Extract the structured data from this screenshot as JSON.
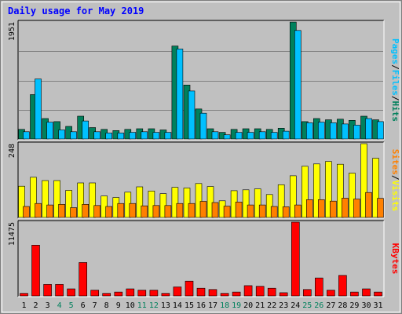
{
  "chart_data": {
    "type": "bar",
    "title": "Daily usage for May 2019",
    "categories": [
      "1",
      "2",
      "3",
      "4",
      "5",
      "6",
      "7",
      "8",
      "9",
      "10",
      "11",
      "12",
      "13",
      "14",
      "15",
      "16",
      "17",
      "18",
      "19",
      "20",
      "21",
      "22",
      "23",
      "24",
      "25",
      "26",
      "27",
      "28",
      "29",
      "30",
      "31"
    ],
    "weekend_days": [
      "4",
      "5",
      "11",
      "12",
      "18",
      "19",
      "25",
      "26"
    ],
    "panels": [
      {
        "id": "hits_files_pages",
        "ymax_label": "1951",
        "ylim": [
          0,
          1951
        ],
        "label_parts": [
          "Pages",
          "Files",
          "Hits"
        ],
        "series": [
          {
            "name": "Hits",
            "color": "#00805c",
            "values": [
              160,
              740,
              340,
              290,
              210,
              380,
              190,
              160,
              140,
              160,
              170,
              170,
              150,
              1550,
              900,
              500,
              170,
              110,
              160,
              170,
              170,
              160,
              180,
              1950,
              290,
              340,
              320,
              330,
              310,
              380,
              320
            ]
          },
          {
            "name": "Files",
            "color": "#00c0ff",
            "values": [
              120,
              1000,
              280,
              150,
              120,
              300,
              120,
              100,
              100,
              110,
              120,
              110,
              110,
              1500,
              800,
              430,
              120,
              70,
              110,
              110,
              120,
              110,
              130,
              1810,
              270,
              280,
              270,
              250,
              230,
              340,
              290
            ]
          }
        ]
      },
      {
        "id": "visits_sites",
        "ymax_label": "248",
        "ylim": [
          0,
          248
        ],
        "label_parts": [
          "Sites",
          "Visits"
        ],
        "series": [
          {
            "name": "Visits",
            "color": "#ffff00",
            "values": [
              105,
              135,
              124,
              124,
              91,
              116,
              116,
              72,
              67,
              85,
              103,
              89,
              80,
              101,
              99,
              114,
              104,
              56,
              90,
              93,
              96,
              77,
              110,
              140,
              172,
              180,
              188,
              179,
              149,
              248,
              199
            ]
          },
          {
            "name": "Sites",
            "color": "#ff8000",
            "values": [
              37,
              47,
              42,
              44,
              33,
              44,
              40,
              37,
              47,
              47,
              39,
              40,
              40,
              47,
              47,
              54,
              50,
              38,
              52,
              42,
              42,
              37,
              36,
              42,
              60,
              60,
              55,
              65,
              62,
              84,
              64
            ]
          }
        ]
      },
      {
        "id": "kbytes",
        "ymax_label": "11475",
        "ylim": [
          0,
          11475
        ],
        "label_parts": [
          "KBytes"
        ],
        "series": [
          {
            "name": "KBytes",
            "color": "#ff0000",
            "values": [
              400,
              7900,
              1800,
              1800,
              1100,
              5200,
              900,
              400,
              600,
              1100,
              900,
              900,
              400,
              1400,
              2300,
              1200,
              1000,
              400,
              600,
              1600,
              1500,
              1200,
              500,
              11475,
              1000,
              2800,
              900,
              3200,
              600,
              1100,
              600
            ]
          }
        ]
      }
    ]
  }
}
